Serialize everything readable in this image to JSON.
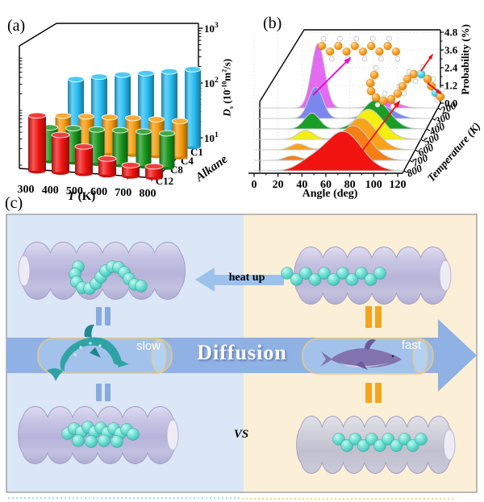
{
  "labels": {
    "panel_a": "(a)",
    "panel_b": "(b)",
    "panel_c": "(c)"
  },
  "panel_a": {
    "x_title_rich": [
      {
        "t": "T",
        "s": "i"
      },
      {
        "t": " (K)"
      }
    ],
    "z_title_rich": [
      {
        "t": "D",
        "s": "i"
      },
      {
        "t": "s",
        "s": "sub"
      },
      {
        "t": " (10"
      },
      {
        "t": "-10",
        "s": "sup"
      },
      {
        "t": "m"
      },
      {
        "t": "2",
        "s": "sup"
      },
      {
        "t": "/s)"
      }
    ],
    "depth_title": "Alkane"
  },
  "panel_b": {
    "x_title": "Angle (deg)",
    "y_title": "Probability (%)",
    "depth_title": "Temperature (K)"
  },
  "panel_c": {
    "heat_up": "heat up",
    "diffusion": "Diffusion",
    "slow": "slow",
    "fast": "fast",
    "vs": "VS",
    "left_bg": "#dbe6f7",
    "right_bg": "#fcefd8",
    "arrow_color": "#8fb1e3",
    "heat_arrow_color": "#9cc2ec",
    "equals_blue": "#87abdc",
    "equals_orange": "#f4a41f",
    "capsule_stroke": "#e4c888",
    "tube_color": "#bdbadc",
    "molecule_color": "#4ed2c6"
  },
  "chart_data": [
    {
      "type": "bar",
      "projection": "3d-cylinders",
      "title": "",
      "xlabel": "T (K)",
      "categories": [
        300,
        400,
        500,
        600,
        700,
        800
      ],
      "series_axis_label": "Alkane",
      "zlabel": "Ds (10^-10 m^2/s)",
      "z_scale": "log",
      "zlim": [
        10,
        1000
      ],
      "z_ticks": [
        "10^1",
        "10^2",
        "10^3"
      ],
      "series": [
        {
          "name": "C1",
          "color": "#27bdf2",
          "radius": 10,
          "values": [
            140,
            165,
            190,
            215,
            245,
            285
          ]
        },
        {
          "name": "C4",
          "color": "#f79a0a",
          "radius": 9.5,
          "values": [
            45,
            46,
            47,
            48,
            48,
            47
          ]
        },
        {
          "name": "C8",
          "color": "#17961c",
          "radius": 9.5,
          "values": [
            42,
            43,
            43,
            44,
            44,
            43
          ]
        },
        {
          "name": "C12",
          "color": "#f01310",
          "radius": 11,
          "values": [
            110,
            50,
            32,
            20,
            16,
            16
          ]
        }
      ]
    },
    {
      "type": "area",
      "projection": "3d-ridge",
      "xlabel": "Angle (deg)",
      "ylabel": "Probability (%)",
      "depth_label": "Temperature (K)",
      "xlim": [
        0,
        130
      ],
      "ylim": [
        0,
        4.8
      ],
      "x_ticks": [
        0,
        20,
        40,
        60,
        80,
        100,
        120
      ],
      "y_ticks": [
        "0.0",
        "1.2",
        "2.4",
        "3.6",
        "4.8"
      ],
      "molecule_insets": [
        "straight-alkane-chain",
        "bent-alkane-chain"
      ],
      "ridges": [
        {
          "temperature": 200,
          "color": "#e26bf2",
          "peaks": [
            {
              "center": 41,
              "sigma": 4.5,
              "amplitude": 4.3
            },
            {
              "center": 88,
              "sigma": 8,
              "amplitude": 0.5
            }
          ]
        },
        {
          "temperature": 300,
          "color": "#7b87ef",
          "peaks": [
            {
              "center": 41,
              "sigma": 5,
              "amplitude": 2.1
            },
            {
              "center": 87,
              "sigma": 9,
              "amplitude": 0.85
            }
          ]
        },
        {
          "temperature": 400,
          "color": "#1a9e27",
          "peaks": [
            {
              "center": 40,
              "sigma": 5.5,
              "amplitude": 1.05
            },
            {
              "center": 86,
              "sigma": 10,
              "amplitude": 1.9
            }
          ]
        },
        {
          "temperature": 500,
          "color": "#f4ef10",
          "peaks": [
            {
              "center": 37,
              "sigma": 6,
              "amplitude": 0.6
            },
            {
              "center": 84,
              "sigma": 11,
              "amplitude": 2.0
            }
          ]
        },
        {
          "temperature": 600,
          "color": "#f8a31b",
          "peaks": [
            {
              "center": 33,
              "sigma": 6,
              "amplitude": 0.4
            },
            {
              "center": 81,
              "sigma": 12,
              "amplitude": 2.1
            }
          ]
        },
        {
          "temperature": 700,
          "color": "#f67f15",
          "peaks": [
            {
              "center": 30,
              "sigma": 6,
              "amplitude": 0.3
            },
            {
              "center": 78,
              "sigma": 13,
              "amplitude": 2.3
            }
          ]
        },
        {
          "temperature": 800,
          "color": "#f21410",
          "peaks": [
            {
              "center": 73,
              "sigma": 15,
              "amplitude": 2.6
            },
            {
              "center": 45,
              "sigma": 10,
              "amplitude": 0.5
            }
          ]
        }
      ]
    }
  ]
}
